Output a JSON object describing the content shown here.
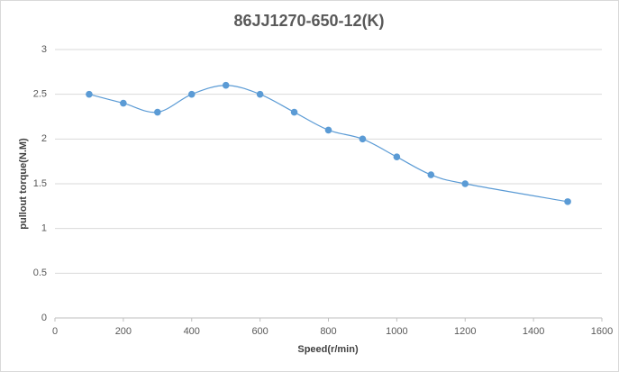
{
  "chart_data": {
    "type": "line",
    "title": "86JJ1270-650-12(K)",
    "x_label": "Speed(r/min)",
    "y_label": "pullout torque(N.M)",
    "x": [
      100,
      200,
      300,
      400,
      500,
      600,
      700,
      800,
      900,
      1000,
      1100,
      1200,
      1500
    ],
    "values": [
      2.5,
      2.4,
      2.3,
      2.5,
      2.6,
      2.5,
      2.3,
      2.1,
      2.0,
      1.8,
      1.6,
      1.5,
      1.3
    ],
    "color": "#5b9bd5",
    "smooth": true,
    "markers": true,
    "xlim": [
      0,
      1600
    ],
    "xticks": [
      0,
      200,
      400,
      600,
      800,
      1000,
      1200,
      1400,
      1600
    ],
    "ylim": [
      0,
      3
    ],
    "yticks": [
      0,
      0.5,
      1,
      1.5,
      2,
      2.5,
      3
    ],
    "grid": true
  }
}
